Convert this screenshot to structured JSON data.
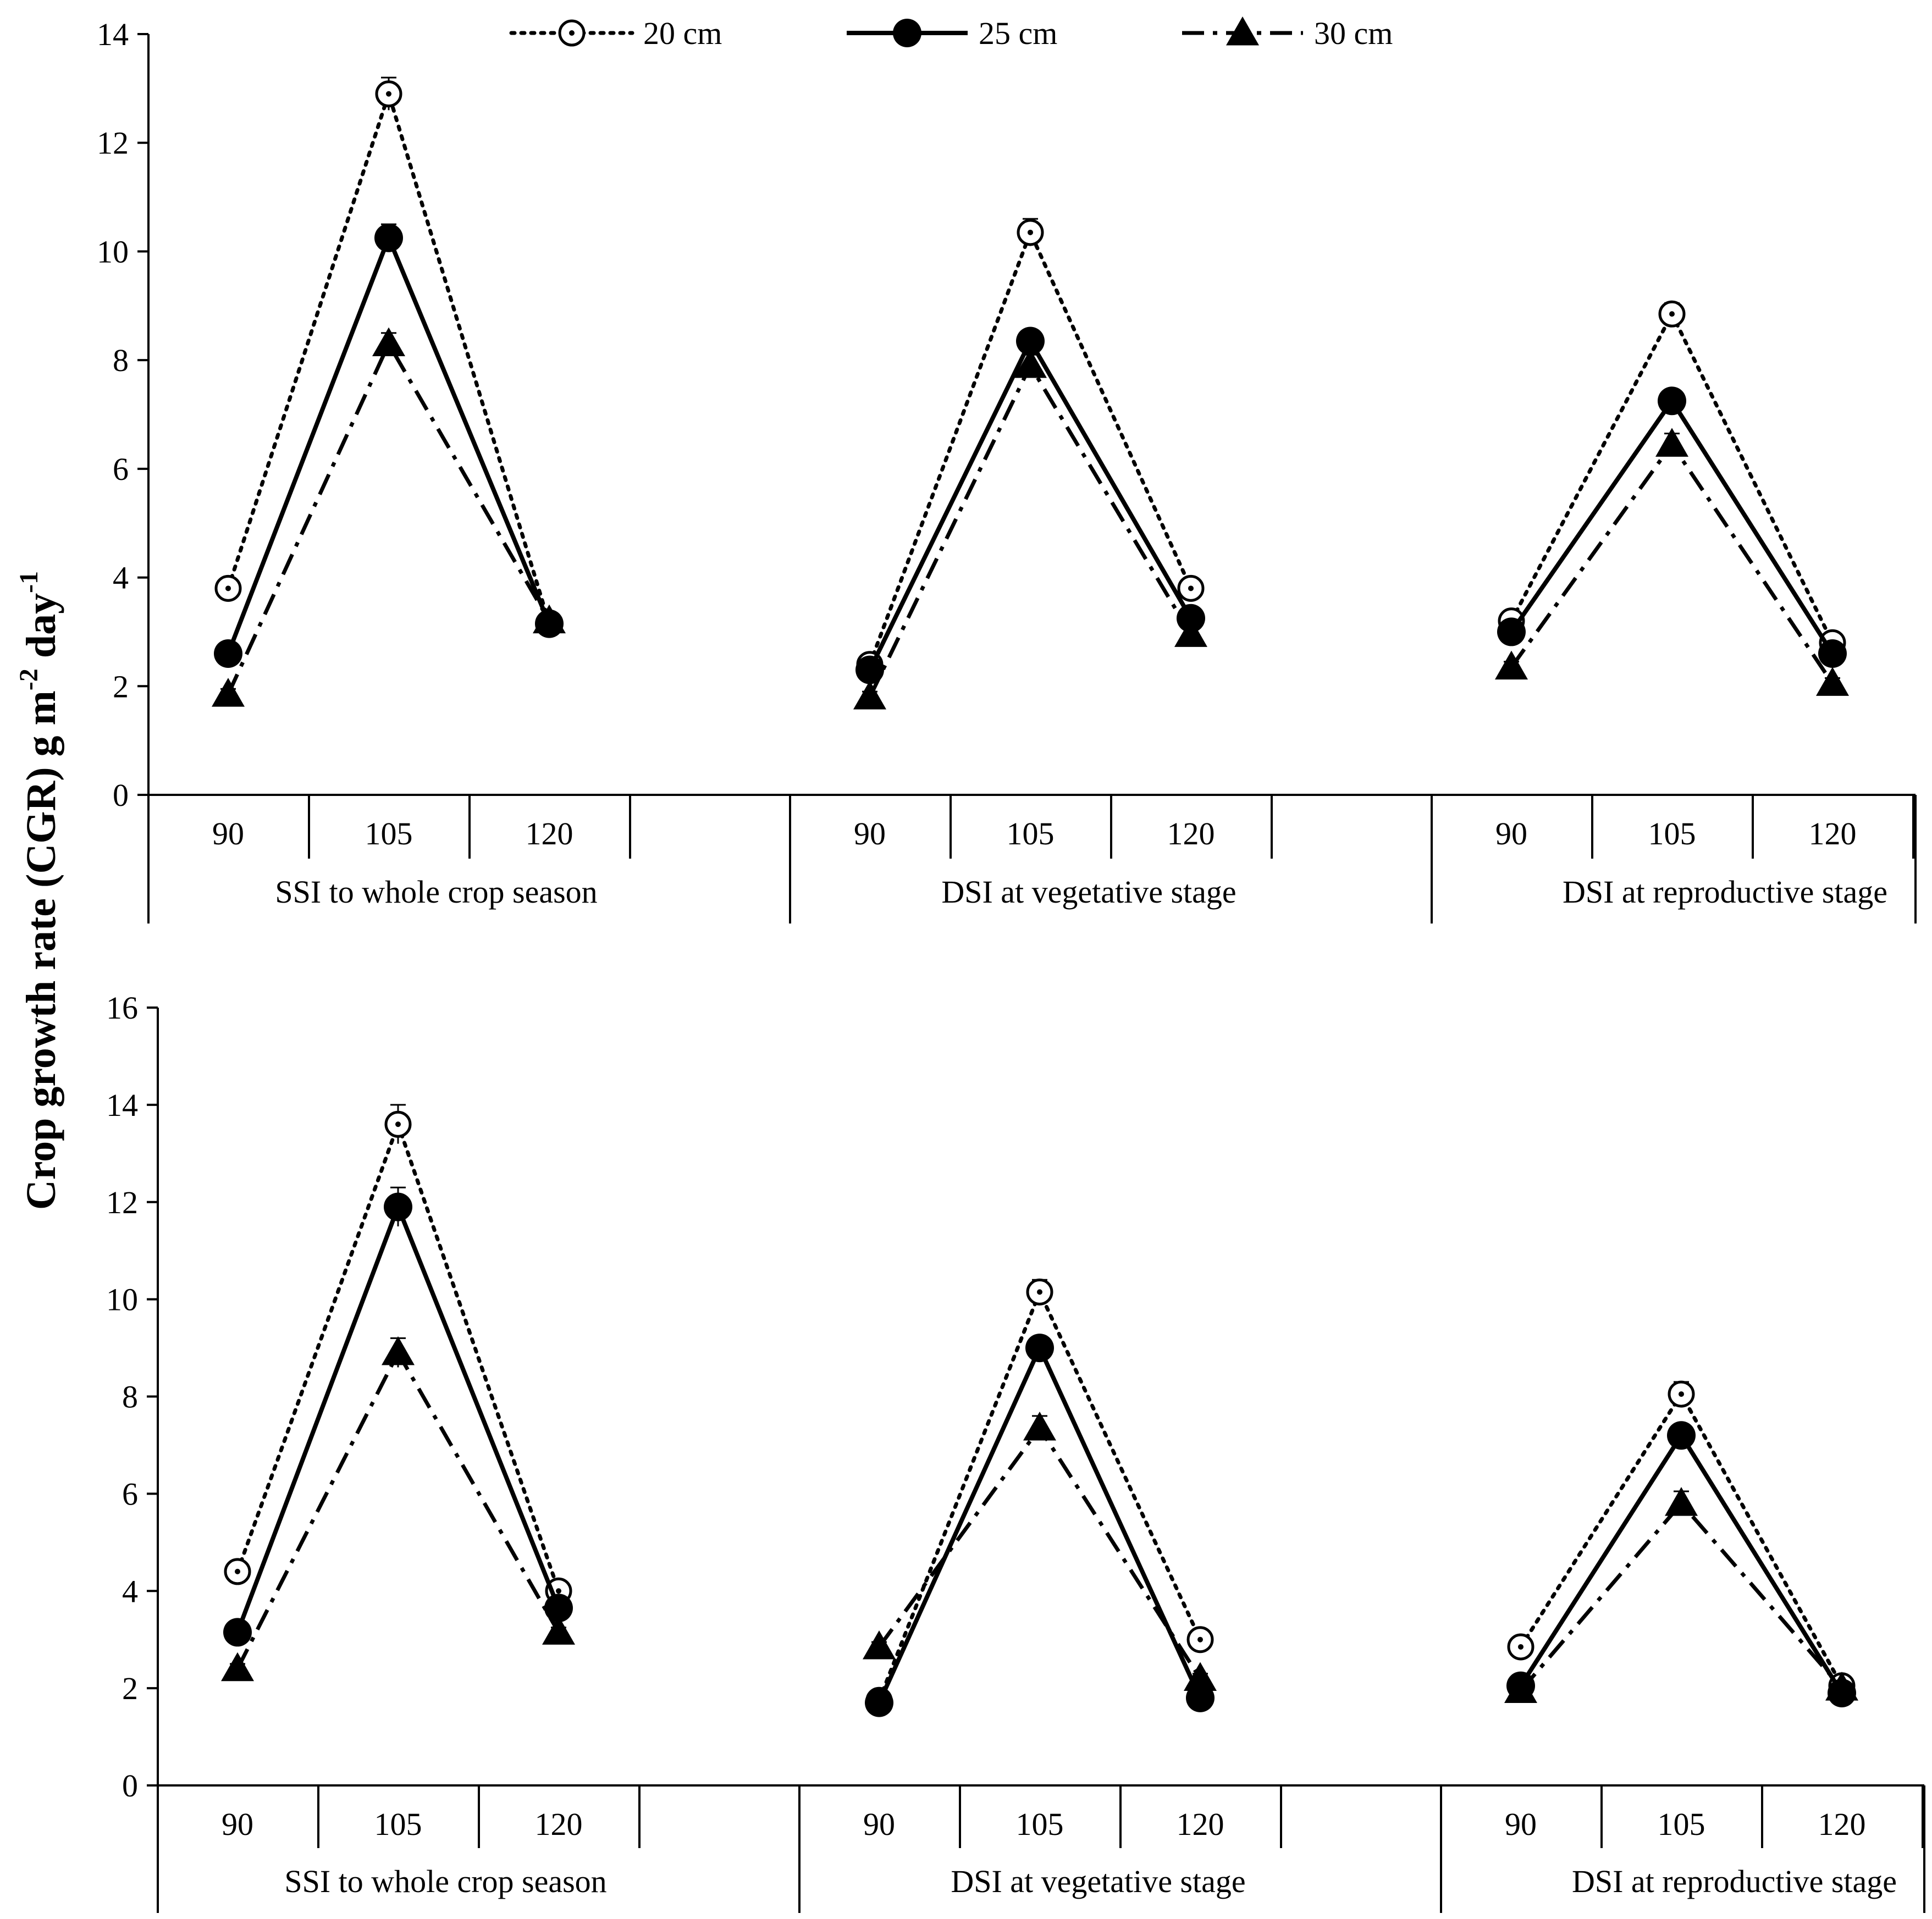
{
  "y_axis_title": "Crop growth rate (CGR) g m",
  "y_axis_sup1": "-2",
  "y_axis_mid": " day",
  "y_axis_sup2": "-1",
  "colors": {
    "line": "#000000",
    "background": "#ffffff"
  },
  "chart_data": [
    {
      "type": "line",
      "panel": "top",
      "ylim": [
        0,
        14
      ],
      "yticks": [
        0,
        2,
        4,
        6,
        8,
        10,
        12,
        14
      ],
      "groups": [
        "SSI to whole crop season",
        "DSI at vegetative stage",
        "DSI at reproductive stage"
      ],
      "categories": [
        "90",
        "105",
        "120"
      ],
      "series": [
        {
          "name": "20 cm",
          "style": "dotted",
          "marker": "open-circle",
          "values": [
            [
              3.8,
              12.9,
              3.15
            ],
            [
              2.4,
              10.35,
              3.8
            ],
            [
              3.2,
              8.85,
              2.8
            ]
          ],
          "errors": [
            [
              0.1,
              0.3,
              0.1
            ],
            [
              0.1,
              0.25,
              0.1
            ],
            [
              0.1,
              0.2,
              0.1
            ]
          ]
        },
        {
          "name": "25 cm",
          "style": "solid",
          "marker": "filled-circle",
          "values": [
            [
              2.6,
              10.25,
              3.15
            ],
            [
              2.3,
              8.35,
              3.25
            ],
            [
              3.0,
              7.25,
              2.6
            ]
          ],
          "errors": [
            [
              0.1,
              0.25,
              0.1
            ],
            [
              0.1,
              0.2,
              0.1
            ],
            [
              0.1,
              0.2,
              0.1
            ]
          ]
        },
        {
          "name": "30 cm",
          "style": "dash-dot",
          "marker": "filled-triangle",
          "values": [
            [
              1.85,
              8.3,
              3.2
            ],
            [
              1.8,
              7.9,
              2.95
            ],
            [
              2.35,
              6.45,
              2.05
            ]
          ],
          "errors": [
            [
              0.1,
              0.2,
              0.1
            ],
            [
              0.1,
              0.2,
              0.1
            ],
            [
              0.1,
              0.2,
              0.1
            ]
          ]
        }
      ]
    },
    {
      "type": "line",
      "panel": "bottom",
      "ylim": [
        0,
        16
      ],
      "yticks": [
        0,
        2,
        4,
        6,
        8,
        10,
        12,
        14,
        16
      ],
      "groups": [
        "SSI to whole crop season",
        "DSI at vegetative stage",
        "DSI at reproductive stage"
      ],
      "categories": [
        "90",
        "105",
        "120"
      ],
      "series": [
        {
          "name": "20 cm",
          "style": "dotted",
          "marker": "open-circle",
          "values": [
            [
              4.4,
              13.6,
              4.0
            ],
            [
              1.75,
              10.15,
              3.0
            ],
            [
              2.85,
              8.05,
              2.05
            ]
          ],
          "errors": [
            [
              0.1,
              0.4,
              0.1
            ],
            [
              0.1,
              0.25,
              0.1
            ],
            [
              0.1,
              0.25,
              0.1
            ]
          ]
        },
        {
          "name": "25 cm",
          "style": "solid",
          "marker": "filled-circle",
          "values": [
            [
              3.15,
              11.9,
              3.65
            ],
            [
              1.7,
              9.0,
              1.8
            ],
            [
              2.05,
              7.2,
              1.9
            ]
          ],
          "errors": [
            [
              0.1,
              0.4,
              0.1
            ],
            [
              0.1,
              0.2,
              0.1
            ],
            [
              0.1,
              0.2,
              0.1
            ]
          ]
        },
        {
          "name": "30 cm",
          "style": "dash-dot",
          "marker": "filled-triangle",
          "values": [
            [
              2.4,
              8.9,
              3.15
            ],
            [
              2.85,
              7.35,
              2.2
            ],
            [
              1.95,
              5.8,
              2.0
            ]
          ],
          "errors": [
            [
              0.1,
              0.3,
              0.1
            ],
            [
              0.1,
              0.25,
              0.1
            ],
            [
              0.1,
              0.25,
              0.1
            ]
          ]
        }
      ]
    }
  ]
}
